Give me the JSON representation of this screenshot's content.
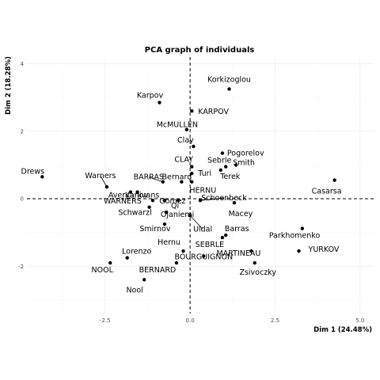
{
  "chart_data": {
    "type": "scatter",
    "title": "PCA graph of individuals",
    "xlabel": "Dim 1 (24.48%)",
    "ylabel": "Dim 2 (18.28%)",
    "xlim": [
      -4.8,
      5.4
    ],
    "ylim": [
      -3.4,
      4.2
    ],
    "xticks": [
      -2.5,
      0.0,
      2.5,
      5.0
    ],
    "xtick_labels": [
      "-2.5",
      "0.0",
      "2.5",
      "5.0"
    ],
    "yticks": [
      -2,
      0,
      2,
      4
    ],
    "ytick_labels": [
      "-2",
      "0",
      "2",
      "4"
    ],
    "grid": true,
    "reference_lines": {
      "x": 0,
      "y": 0
    },
    "points": [
      {
        "label": "Korkizoglou",
        "x": 1.15,
        "y": 3.25
      },
      {
        "label": "Karpov",
        "x": -0.9,
        "y": 2.85
      },
      {
        "label": "KARPOV",
        "x": 0.05,
        "y": 2.6
      },
      {
        "label": "McMULLEN",
        "x": -0.1,
        "y": 2.05
      },
      {
        "label": "Clay",
        "x": 0.1,
        "y": 1.55
      },
      {
        "label": "Pogorelov",
        "x": 0.95,
        "y": 1.35
      },
      {
        "label": "Sebrle",
        "x": 1.05,
        "y": 0.95
      },
      {
        "label": "Smith",
        "x": 1.35,
        "y": 1.0
      },
      {
        "label": "CLAY",
        "x": 0.05,
        "y": 0.95
      },
      {
        "label": "Turi",
        "x": 0.05,
        "y": 0.75
      },
      {
        "label": "Terek",
        "x": 0.9,
        "y": 0.85
      },
      {
        "label": "Drews",
        "x": -4.35,
        "y": 0.65
      },
      {
        "label": "Warners",
        "x": -2.45,
        "y": 0.35
      },
      {
        "label": "BARRAS",
        "x": -0.8,
        "y": 0.5
      },
      {
        "label": "Bernard",
        "x": -0.25,
        "y": 0.5
      },
      {
        "label": "Averyanov",
        "x": -1.75,
        "y": 0.2
      },
      {
        "label": "Karlivans",
        "x": -1.55,
        "y": 0.2
      },
      {
        "label": "HERNU",
        "x": 0.05,
        "y": 0.5
      },
      {
        "label": "Schoenbeck",
        "x": 0.3,
        "y": -0.05
      },
      {
        "label": "Casarsa",
        "x": 4.25,
        "y": 0.55
      },
      {
        "label": "WARNERS",
        "x": -1.1,
        "y": -0.05
      },
      {
        "label": "Gomez",
        "x": -0.75,
        "y": -0.05
      },
      {
        "label": "Qi",
        "x": -0.35,
        "y": -0.05
      },
      {
        "label": "Macey",
        "x": 1.3,
        "y": -0.12
      },
      {
        "label": "Schwarzl",
        "x": -1.2,
        "y": -0.25
      },
      {
        "label": "Ojaniemi",
        "x": -0.7,
        "y": -0.4
      },
      {
        "label": "Smirnov",
        "x": -0.75,
        "y": -0.75
      },
      {
        "label": "Uldal",
        "x": 0.0,
        "y": -0.5
      },
      {
        "label": "Barras",
        "x": 1.05,
        "y": -1.08
      },
      {
        "label": "Parkhomenko",
        "x": 3.3,
        "y": -0.88
      },
      {
        "label": "Hernu",
        "x": -0.2,
        "y": -1.55
      },
      {
        "label": "SEBRLE",
        "x": 0.95,
        "y": -1.15
      },
      {
        "label": "MARTINEAU",
        "x": 1.8,
        "y": -1.55
      },
      {
        "label": "YURKOV",
        "x": 3.2,
        "y": -1.55
      },
      {
        "label": "Lorenzo",
        "x": -1.85,
        "y": -1.75
      },
      {
        "label": "BOURGUIGNON",
        "x": 0.4,
        "y": -1.7
      },
      {
        "label": "NOOL",
        "x": -2.35,
        "y": -1.9
      },
      {
        "label": "BERNARD",
        "x": -0.4,
        "y": -1.9
      },
      {
        "label": "Zsivoczky",
        "x": 1.9,
        "y": -1.9
      },
      {
        "label": "Nool",
        "x": -1.35,
        "y": -2.4
      }
    ]
  }
}
